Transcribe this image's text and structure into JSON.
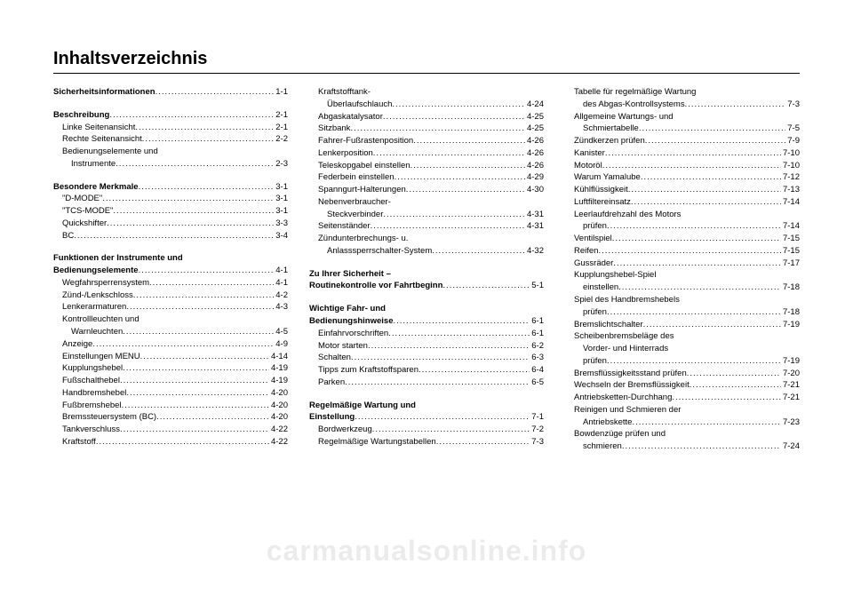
{
  "title": "Inhaltsverzeichnis",
  "watermark": "carmanualsonline.info",
  "col1": [
    {
      "type": "entry",
      "bold": true,
      "indent": 0,
      "label": "Sicherheitsinformationen",
      "page": "1-1"
    },
    {
      "type": "spacer"
    },
    {
      "type": "entry",
      "bold": true,
      "indent": 0,
      "label": "Beschreibung",
      "page": "2-1"
    },
    {
      "type": "entry",
      "bold": false,
      "indent": 1,
      "label": "Linke Seitenansicht",
      "page": "2-1"
    },
    {
      "type": "entry",
      "bold": false,
      "indent": 1,
      "label": "Rechte Seitenansicht",
      "page": "2-2"
    },
    {
      "type": "heading",
      "indent": 1,
      "label": "Bedienungselemente und"
    },
    {
      "type": "entry",
      "bold": false,
      "indent": 2,
      "label": "Instrumente",
      "page": "2-3"
    },
    {
      "type": "spacer"
    },
    {
      "type": "entry",
      "bold": true,
      "indent": 0,
      "label": "Besondere Merkmale",
      "page": "3-1"
    },
    {
      "type": "entry",
      "bold": false,
      "indent": 1,
      "label": "\"D-MODE\"",
      "page": "3-1"
    },
    {
      "type": "entry",
      "bold": false,
      "indent": 1,
      "label": "\"TCS-MODE\"",
      "page": "3-1"
    },
    {
      "type": "entry",
      "bold": false,
      "indent": 1,
      "label": "Quickshifter",
      "page": "3-3"
    },
    {
      "type": "entry",
      "bold": false,
      "indent": 1,
      "label": "BC",
      "page": "3-4"
    },
    {
      "type": "spacer"
    },
    {
      "type": "heading",
      "indent": 0,
      "bold": true,
      "label": "Funktionen der Instrumente und"
    },
    {
      "type": "entry",
      "bold": true,
      "indent": 0,
      "label": "Bedienungselemente",
      "page": "4-1"
    },
    {
      "type": "entry",
      "bold": false,
      "indent": 1,
      "label": "Wegfahrsperrensystem",
      "page": "4-1"
    },
    {
      "type": "entry",
      "bold": false,
      "indent": 1,
      "label": "Zünd-/Lenkschloss",
      "page": "4-2"
    },
    {
      "type": "entry",
      "bold": false,
      "indent": 1,
      "label": "Lenkerarmaturen",
      "page": "4-3"
    },
    {
      "type": "heading",
      "indent": 1,
      "label": "Kontrollleuchten und"
    },
    {
      "type": "entry",
      "bold": false,
      "indent": 2,
      "label": "Warnleuchten",
      "page": "4-5"
    },
    {
      "type": "entry",
      "bold": false,
      "indent": 1,
      "label": "Anzeige",
      "page": "4-9"
    },
    {
      "type": "entry",
      "bold": false,
      "indent": 1,
      "label": "Einstellungen MENU",
      "page": "4-14"
    },
    {
      "type": "entry",
      "bold": false,
      "indent": 1,
      "label": "Kupplungshebel",
      "page": "4-19"
    },
    {
      "type": "entry",
      "bold": false,
      "indent": 1,
      "label": "Fußschalthebel",
      "page": "4-19"
    },
    {
      "type": "entry",
      "bold": false,
      "indent": 1,
      "label": "Handbremshebel",
      "page": "4-20"
    },
    {
      "type": "entry",
      "bold": false,
      "indent": 1,
      "label": "Fußbremshebel",
      "page": "4-20"
    },
    {
      "type": "entry",
      "bold": false,
      "indent": 1,
      "label": "Bremssteuersystem (BC)",
      "page": "4-20"
    },
    {
      "type": "entry",
      "bold": false,
      "indent": 1,
      "label": "Tankverschluss",
      "page": "4-22"
    },
    {
      "type": "entry",
      "bold": false,
      "indent": 1,
      "label": "Kraftstoff",
      "page": "4-22"
    }
  ],
  "col2": [
    {
      "type": "heading",
      "indent": 1,
      "label": "Kraftstofftank-"
    },
    {
      "type": "entry",
      "bold": false,
      "indent": 2,
      "label": "Überlaufschlauch",
      "page": "4-24"
    },
    {
      "type": "entry",
      "bold": false,
      "indent": 1,
      "label": "Abgaskatalysator",
      "page": "4-25"
    },
    {
      "type": "entry",
      "bold": false,
      "indent": 1,
      "label": "Sitzbank",
      "page": "4-25"
    },
    {
      "type": "entry",
      "bold": false,
      "indent": 1,
      "label": "Fahrer-Fußrastenposition",
      "page": "4-26"
    },
    {
      "type": "entry",
      "bold": false,
      "indent": 1,
      "label": "Lenkerposition",
      "page": "4-26"
    },
    {
      "type": "entry",
      "bold": false,
      "indent": 1,
      "label": "Teleskopgabel einstellen",
      "page": "4-26"
    },
    {
      "type": "entry",
      "bold": false,
      "indent": 1,
      "label": "Federbein einstellen",
      "page": "4-29"
    },
    {
      "type": "entry",
      "bold": false,
      "indent": 1,
      "label": "Spanngurt-Halterungen",
      "page": "4-30"
    },
    {
      "type": "heading",
      "indent": 1,
      "label": "Nebenverbraucher-"
    },
    {
      "type": "entry",
      "bold": false,
      "indent": 2,
      "label": "Steckverbinder",
      "page": "4-31"
    },
    {
      "type": "entry",
      "bold": false,
      "indent": 1,
      "label": "Seitenständer",
      "page": "4-31"
    },
    {
      "type": "heading",
      "indent": 1,
      "label": "Zündunterbrechungs- u."
    },
    {
      "type": "entry",
      "bold": false,
      "indent": 2,
      "label": "Anlasssperrschalter-System",
      "page": "4-32"
    },
    {
      "type": "spacer"
    },
    {
      "type": "heading",
      "indent": 0,
      "bold": true,
      "label": "Zu Ihrer Sicherheit –"
    },
    {
      "type": "entry",
      "bold": true,
      "indent": 0,
      "label": "Routinekontrolle vor Fahrtbeginn",
      "page": "5-1"
    },
    {
      "type": "spacer"
    },
    {
      "type": "heading",
      "indent": 0,
      "bold": true,
      "label": "Wichtige Fahr- und"
    },
    {
      "type": "entry",
      "bold": true,
      "indent": 0,
      "label": "Bedienungshinweise",
      "page": "6-1"
    },
    {
      "type": "entry",
      "bold": false,
      "indent": 1,
      "label": "Einfahrvorschriften",
      "page": "6-1"
    },
    {
      "type": "entry",
      "bold": false,
      "indent": 1,
      "label": "Motor starten",
      "page": "6-2"
    },
    {
      "type": "entry",
      "bold": false,
      "indent": 1,
      "label": "Schalten",
      "page": "6-3"
    },
    {
      "type": "entry",
      "bold": false,
      "indent": 1,
      "label": "Tipps zum Kraftstoffsparen",
      "page": "6-4"
    },
    {
      "type": "entry",
      "bold": false,
      "indent": 1,
      "label": "Parken",
      "page": "6-5"
    },
    {
      "type": "spacer"
    },
    {
      "type": "heading",
      "indent": 0,
      "bold": true,
      "label": "Regelmäßige Wartung und"
    },
    {
      "type": "entry",
      "bold": true,
      "indent": 0,
      "label": "Einstellung",
      "page": "7-1"
    },
    {
      "type": "entry",
      "bold": false,
      "indent": 1,
      "label": "Bordwerkzeug",
      "page": "7-2"
    },
    {
      "type": "entry",
      "bold": false,
      "indent": 1,
      "label": "Regelmäßige Wartungstabellen",
      "page": "7-3"
    }
  ],
  "col3": [
    {
      "type": "heading",
      "indent": 1,
      "label": "Tabelle für regelmäßige Wartung"
    },
    {
      "type": "entry",
      "bold": false,
      "indent": 2,
      "label": "des Abgas-Kontrollsystems",
      "page": "7-3"
    },
    {
      "type": "heading",
      "indent": 1,
      "label": "Allgemeine Wartungs- und"
    },
    {
      "type": "entry",
      "bold": false,
      "indent": 2,
      "label": "Schmiertabelle",
      "page": "7-5"
    },
    {
      "type": "entry",
      "bold": false,
      "indent": 1,
      "label": "Zündkerzen prüfen",
      "page": "7-9"
    },
    {
      "type": "entry",
      "bold": false,
      "indent": 1,
      "label": "Kanister",
      "page": "7-10"
    },
    {
      "type": "entry",
      "bold": false,
      "indent": 1,
      "label": "Motoröl",
      "page": "7-10"
    },
    {
      "type": "entry",
      "bold": false,
      "indent": 1,
      "label": "Warum Yamalube",
      "page": "7-12"
    },
    {
      "type": "entry",
      "bold": false,
      "indent": 1,
      "label": "Kühlflüssigkeit",
      "page": "7-13"
    },
    {
      "type": "entry",
      "bold": false,
      "indent": 1,
      "label": "Luftfiltereinsatz",
      "page": "7-14"
    },
    {
      "type": "heading",
      "indent": 1,
      "label": "Leerlaufdrehzahl des Motors"
    },
    {
      "type": "entry",
      "bold": false,
      "indent": 2,
      "label": "prüfen",
      "page": "7-14"
    },
    {
      "type": "entry",
      "bold": false,
      "indent": 1,
      "label": "Ventilspiel",
      "page": "7-15"
    },
    {
      "type": "entry",
      "bold": false,
      "indent": 1,
      "label": "Reifen",
      "page": "7-15"
    },
    {
      "type": "entry",
      "bold": false,
      "indent": 1,
      "label": "Gussräder",
      "page": "7-17"
    },
    {
      "type": "heading",
      "indent": 1,
      "label": "Kupplungshebel-Spiel"
    },
    {
      "type": "entry",
      "bold": false,
      "indent": 2,
      "label": "einstellen",
      "page": "7-18"
    },
    {
      "type": "heading",
      "indent": 1,
      "label": "Spiel des Handbremshebels"
    },
    {
      "type": "entry",
      "bold": false,
      "indent": 2,
      "label": "prüfen",
      "page": "7-18"
    },
    {
      "type": "entry",
      "bold": false,
      "indent": 1,
      "label": "Bremslichtschalter",
      "page": "7-19"
    },
    {
      "type": "heading",
      "indent": 1,
      "label": "Scheibenbremsbeläge des"
    },
    {
      "type": "heading",
      "indent": 2,
      "label": "Vorder- und Hinterrads"
    },
    {
      "type": "entry",
      "bold": false,
      "indent": 2,
      "label": "prüfen",
      "page": "7-19"
    },
    {
      "type": "entry",
      "bold": false,
      "indent": 1,
      "label": "Bremsflüssigkeitsstand prüfen",
      "page": "7-20"
    },
    {
      "type": "entry",
      "bold": false,
      "indent": 1,
      "label": "Wechseln der Bremsflüssigkeit",
      "page": "7-21"
    },
    {
      "type": "entry",
      "bold": false,
      "indent": 1,
      "label": "Antriebsketten-Durchhang",
      "page": "7-21"
    },
    {
      "type": "heading",
      "indent": 1,
      "label": "Reinigen und Schmieren der"
    },
    {
      "type": "entry",
      "bold": false,
      "indent": 2,
      "label": "Antriebskette",
      "page": "7-23"
    },
    {
      "type": "heading",
      "indent": 1,
      "label": "Bowdenzüge prüfen und"
    },
    {
      "type": "entry",
      "bold": false,
      "indent": 2,
      "label": "schmieren",
      "page": "7-24"
    }
  ]
}
